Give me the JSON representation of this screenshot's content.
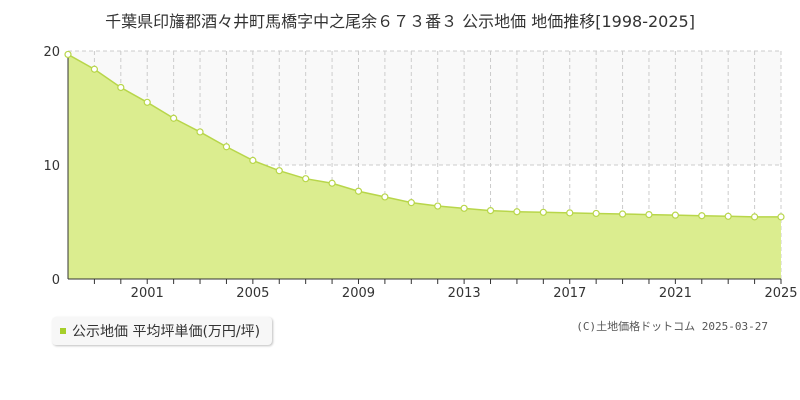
{
  "title": "千葉県印旛郡酒々井町馬橋字中之尾余６７３番３ 公示地価 地価推移[1998-2025]",
  "legend": {
    "label": "公示地価 平均坪単価(万円/坪)"
  },
  "credit": "(C)土地価格ドットコム 2025-03-27",
  "colors": {
    "fill": "#dbed8f",
    "line": "#b8d64a",
    "marker_stroke": "#b8d64a",
    "marker_fill": "#ffffff",
    "legend_swatch": "#a6cf2a"
  },
  "chart_data": {
    "type": "area",
    "title": "千葉県印旛郡酒々井町馬橋字中之尾余６７３番３ 公示地価 地価推移[1998-2025]",
    "xlabel": "",
    "ylabel": "",
    "xlim": [
      1998,
      2025
    ],
    "ylim": [
      0,
      20
    ],
    "yticks": [
      0,
      10,
      20
    ],
    "xtick_labels": [
      "2001",
      "2005",
      "2009",
      "2013",
      "2017",
      "2021",
      "2025"
    ],
    "grid": true,
    "legend": "bottom-left",
    "series": [
      {
        "name": "公示地価 平均坪単価(万円/坪)",
        "x": [
          1998,
          1999,
          2000,
          2001,
          2002,
          2003,
          2004,
          2005,
          2006,
          2007,
          2008,
          2009,
          2010,
          2011,
          2012,
          2013,
          2014,
          2015,
          2016,
          2017,
          2018,
          2019,
          2020,
          2021,
          2022,
          2023,
          2024,
          2025
        ],
        "y": [
          19.7,
          18.4,
          16.8,
          15.5,
          14.1,
          12.9,
          11.6,
          10.4,
          9.5,
          8.8,
          8.4,
          7.7,
          7.2,
          6.7,
          6.4,
          6.2,
          6.0,
          5.9,
          5.85,
          5.8,
          5.75,
          5.7,
          5.65,
          5.6,
          5.55,
          5.5,
          5.45,
          5.45
        ]
      }
    ]
  }
}
